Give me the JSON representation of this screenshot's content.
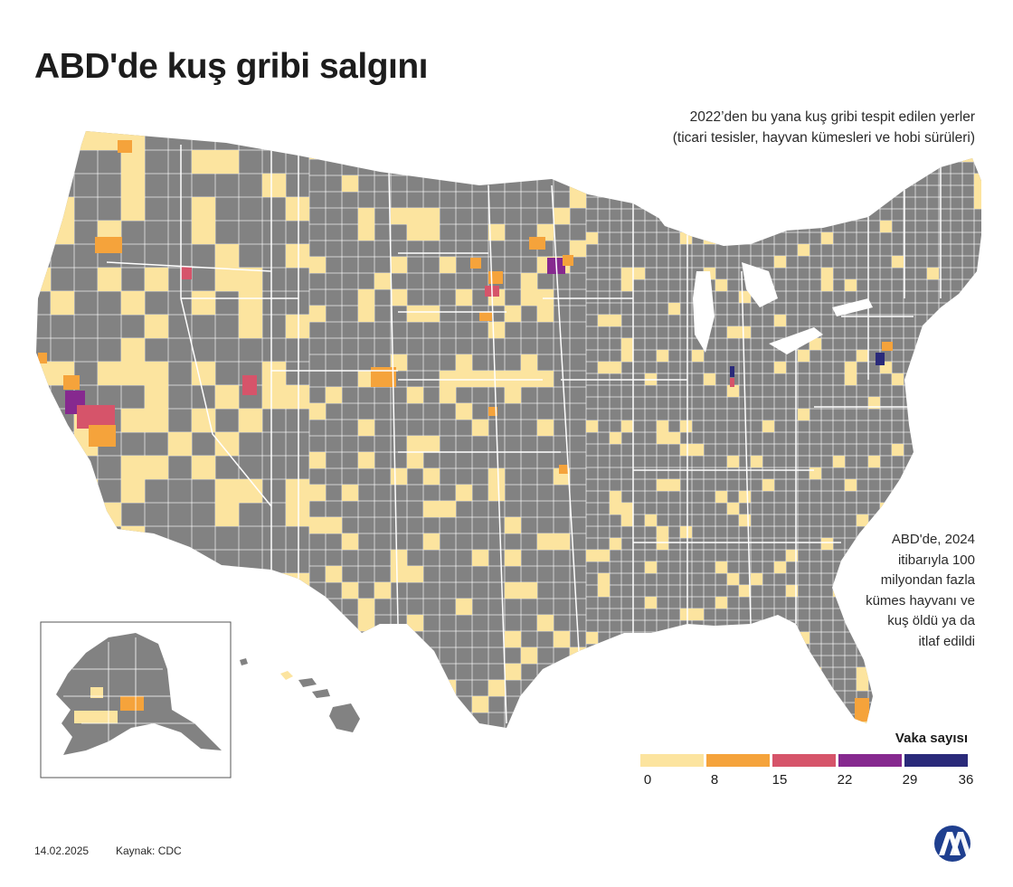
{
  "title": "ABD'de kuş gribi salgını",
  "subtitle": [
    "2022’den bu yana  kuş gribi tespit edilen yerler",
    "(ticari tesisler, hayvan kümesleri ve hobi sürüleri)"
  ],
  "annotation": [
    "ABD'de, 2024",
    "itibarıyla 100",
    "milyondan fazla",
    "kümes hayvanı ve",
    "kuş öldü ya da",
    "itlaf edildi"
  ],
  "legend": {
    "title": "Vaka sayısı",
    "ticks": [
      "0",
      "8",
      "15",
      "22",
      "29",
      "36"
    ],
    "colors": [
      "#fce49f",
      "#f5a33b",
      "#d6546a",
      "#86298f",
      "#2a2a7a"
    ]
  },
  "colors": {
    "no_cases": "#828282",
    "border": "#ffffff",
    "text": "#1c1c1c",
    "logo": "#1f3f8f"
  },
  "footer": {
    "date": "14.02.2025",
    "source": "Kaynak: CDC"
  },
  "logo_text": "AA"
}
